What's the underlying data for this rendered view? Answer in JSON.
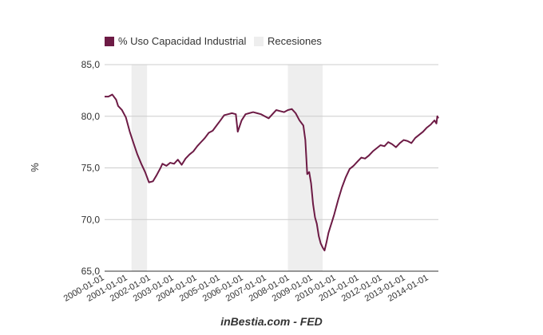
{
  "chart_data": {
    "type": "line",
    "ylabel": "%",
    "ylim": [
      65,
      85
    ],
    "yticks": [
      "85,0",
      "80,0",
      "75,0",
      "70,0",
      "65,0"
    ],
    "ytick_values": [
      85,
      80,
      75,
      70,
      65
    ],
    "x_start": "2000-01-01",
    "x_end": "2014-06-01",
    "xtick_labels": [
      "2000-01-01",
      "2001-01-01",
      "2002-01-01",
      "2003-01-01",
      "2004-01-01",
      "2005-01-01",
      "2006-01-01",
      "2007-01-01",
      "2008-01-01",
      "2009-01-01",
      "2010-01-01",
      "2011-01-01",
      "2012-01-01",
      "2013-01-01",
      "2014-01-01"
    ],
    "source": "inBestia.com - FED",
    "grid": "horizontal",
    "legend_position": "top-left",
    "series": [
      {
        "name": "% Uso Capacidad Industrial",
        "color": "#6d1b45",
        "points": [
          [
            "2000-01-01",
            81.9
          ],
          [
            "2000-03-01",
            81.9
          ],
          [
            "2000-05-01",
            82.1
          ],
          [
            "2000-07-01",
            81.6
          ],
          [
            "2000-08-01",
            81.0
          ],
          [
            "2000-10-01",
            80.6
          ],
          [
            "2000-12-01",
            79.9
          ],
          [
            "2001-02-01",
            78.5
          ],
          [
            "2001-04-01",
            77.4
          ],
          [
            "2001-06-01",
            76.3
          ],
          [
            "2001-08-01",
            75.4
          ],
          [
            "2001-10-01",
            74.6
          ],
          [
            "2001-12-01",
            73.6
          ],
          [
            "2002-02-01",
            73.7
          ],
          [
            "2002-04-01",
            74.3
          ],
          [
            "2002-06-01",
            75.0
          ],
          [
            "2002-07-01",
            75.4
          ],
          [
            "2002-09-01",
            75.2
          ],
          [
            "2002-11-01",
            75.5
          ],
          [
            "2003-01-01",
            75.4
          ],
          [
            "2003-03-01",
            75.8
          ],
          [
            "2003-05-01",
            75.3
          ],
          [
            "2003-07-01",
            75.9
          ],
          [
            "2003-09-01",
            76.3
          ],
          [
            "2003-11-01",
            76.6
          ],
          [
            "2004-01-01",
            77.1
          ],
          [
            "2004-03-01",
            77.5
          ],
          [
            "2004-05-01",
            77.9
          ],
          [
            "2004-07-01",
            78.4
          ],
          [
            "2004-09-01",
            78.6
          ],
          [
            "2004-11-01",
            79.1
          ],
          [
            "2005-01-01",
            79.6
          ],
          [
            "2005-03-01",
            80.1
          ],
          [
            "2005-05-01",
            80.2
          ],
          [
            "2005-07-01",
            80.3
          ],
          [
            "2005-09-01",
            80.2
          ],
          [
            "2005-10-01",
            78.5
          ],
          [
            "2005-12-01",
            79.6
          ],
          [
            "2006-02-01",
            80.2
          ],
          [
            "2006-04-01",
            80.3
          ],
          [
            "2006-06-01",
            80.4
          ],
          [
            "2006-08-01",
            80.3
          ],
          [
            "2006-10-01",
            80.2
          ],
          [
            "2006-12-01",
            80.0
          ],
          [
            "2007-02-01",
            79.8
          ],
          [
            "2007-04-01",
            80.2
          ],
          [
            "2007-06-01",
            80.6
          ],
          [
            "2007-08-01",
            80.5
          ],
          [
            "2007-10-01",
            80.4
          ],
          [
            "2007-12-01",
            80.6
          ],
          [
            "2008-02-01",
            80.7
          ],
          [
            "2008-04-01",
            80.3
          ],
          [
            "2008-06-01",
            79.6
          ],
          [
            "2008-08-01",
            79.1
          ],
          [
            "2008-09-01",
            77.7
          ],
          [
            "2008-10-01",
            74.4
          ],
          [
            "2008-11-01",
            74.6
          ],
          [
            "2008-12-01",
            73.5
          ],
          [
            "2009-01-01",
            71.5
          ],
          [
            "2009-02-01",
            70.2
          ],
          [
            "2009-03-01",
            69.6
          ],
          [
            "2009-04-01",
            68.4
          ],
          [
            "2009-05-01",
            67.7
          ],
          [
            "2009-06-01",
            67.3
          ],
          [
            "2009-07-01",
            67.0
          ],
          [
            "2009-08-01",
            67.8
          ],
          [
            "2009-09-01",
            68.7
          ],
          [
            "2009-10-01",
            69.3
          ],
          [
            "2009-11-01",
            69.9
          ],
          [
            "2009-12-01",
            70.5
          ],
          [
            "2010-02-01",
            71.9
          ],
          [
            "2010-04-01",
            73.1
          ],
          [
            "2010-06-01",
            74.1
          ],
          [
            "2010-08-01",
            74.9
          ],
          [
            "2010-10-01",
            75.2
          ],
          [
            "2010-12-01",
            75.6
          ],
          [
            "2011-02-01",
            76.0
          ],
          [
            "2011-04-01",
            75.9
          ],
          [
            "2011-06-01",
            76.2
          ],
          [
            "2011-08-01",
            76.6
          ],
          [
            "2011-10-01",
            76.9
          ],
          [
            "2011-12-01",
            77.2
          ],
          [
            "2012-02-01",
            77.1
          ],
          [
            "2012-04-01",
            77.5
          ],
          [
            "2012-06-01",
            77.3
          ],
          [
            "2012-08-01",
            77.0
          ],
          [
            "2012-10-01",
            77.4
          ],
          [
            "2012-12-01",
            77.7
          ],
          [
            "2013-02-01",
            77.6
          ],
          [
            "2013-04-01",
            77.4
          ],
          [
            "2013-06-01",
            77.9
          ],
          [
            "2013-08-01",
            78.2
          ],
          [
            "2013-10-01",
            78.5
          ],
          [
            "2013-12-01",
            78.9
          ],
          [
            "2014-02-01",
            79.2
          ],
          [
            "2014-03-01",
            79.4
          ],
          [
            "2014-04-01",
            79.6
          ],
          [
            "2014-05-01",
            79.3
          ],
          [
            "2014-05-15",
            80.0
          ],
          [
            "2014-06-01",
            79.8
          ]
        ]
      },
      {
        "name": "Recesiones",
        "color": "#eeeeee",
        "periods": [
          [
            "2001-03-01",
            "2001-11-01"
          ],
          [
            "2007-12-01",
            "2009-06-01"
          ]
        ]
      }
    ]
  }
}
